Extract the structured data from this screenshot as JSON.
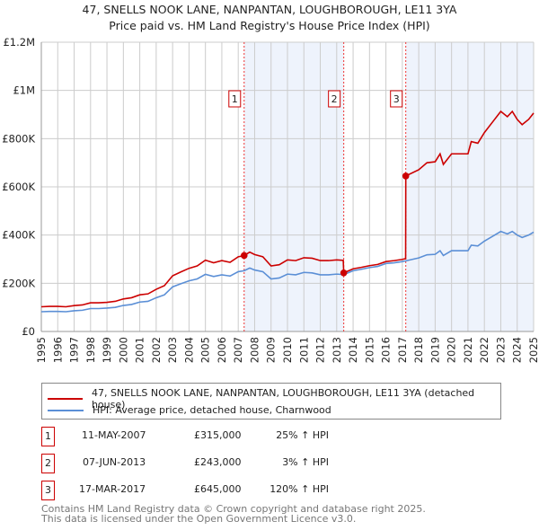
{
  "title": "47, SNELLS NOOK LANE, NANPANTAN, LOUGHBOROUGH, LE11 3YA",
  "subtitle": "Price paid vs. HM Land Registry's House Price Index (HPI)",
  "colors": {
    "property": "#cc0000",
    "hpi": "#5b8fd6",
    "shade": "#eef3fc",
    "grid": "#cccccc"
  },
  "chart_data": {
    "type": "line",
    "title": "47, SNELLS NOOK LANE, NANPANTAN, LOUGHBOROUGH, LE11 3YA",
    "subtitle": "Price paid vs. HM Land Registry's House Price Index (HPI)",
    "xlim": [
      1995,
      2025
    ],
    "ylim": [
      0,
      1200000
    ],
    "grid": true,
    "x_ticks": [
      "1995",
      "1996",
      "1997",
      "1998",
      "1999",
      "2000",
      "2001",
      "2002",
      "2003",
      "2004",
      "2005",
      "2006",
      "2007",
      "2008",
      "2009",
      "2010",
      "2011",
      "2012",
      "2013",
      "2014",
      "2015",
      "2016",
      "2017",
      "2018",
      "2019",
      "2020",
      "2021",
      "2022",
      "2023",
      "2024",
      "2025"
    ],
    "y_ticks": [
      {
        "v": 0,
        "label": "£0"
      },
      {
        "v": 200000,
        "label": "£200K"
      },
      {
        "v": 400000,
        "label": "£400K"
      },
      {
        "v": 600000,
        "label": "£600K"
      },
      {
        "v": 800000,
        "label": "£800K"
      },
      {
        "v": 1000000,
        "label": "£1M"
      },
      {
        "v": 1200000,
        "label": "£1.2M"
      }
    ],
    "legend_placement": "bottom",
    "series": [
      {
        "name": "47, SNELLS NOOK LANE, NANPANTAN, LOUGHBOROUGH, LE11 3YA (detached house)",
        "color": "#cc0000",
        "x": [
          1995,
          1995.5,
          1996,
          1996.5,
          1997,
          1997.5,
          1998,
          1998.5,
          1999,
          1999.5,
          2000,
          2000.5,
          2001,
          2001.5,
          2002,
          2002.5,
          2003,
          2003.5,
          2004,
          2004.5,
          2005,
          2005.5,
          2006,
          2006.5,
          2007,
          2007.36,
          2007.7,
          2008,
          2008.5,
          2009,
          2009.5,
          2010,
          2010.5,
          2011,
          2011.5,
          2012,
          2012.5,
          2013,
          2013.4,
          2013.43,
          2014,
          2014.5,
          2015,
          2015.5,
          2016,
          2016.5,
          2017,
          2017.2,
          2017.21,
          2018,
          2018.5,
          2019,
          2019.3,
          2019.5,
          2020,
          2020.5,
          2021,
          2021.2,
          2021.6,
          2022,
          2022.5,
          2023,
          2023.4,
          2023.7,
          2024,
          2024.3,
          2024.7,
          2025
        ],
        "y": [
          102500,
          104000,
          104000,
          102500,
          107500,
          110000,
          119000,
          119000,
          121000,
          125000,
          135000,
          140000,
          152000,
          156000,
          175000,
          190000,
          231000,
          247000,
          262000,
          272000,
          296000,
          285000,
          294000,
          287000,
          310000,
          315000,
          329000,
          319000,
          310000,
          272000,
          277000,
          297000,
          294000,
          306000,
          304000,
          294000,
          294000,
          297000,
          295000,
          243000,
          260000,
          266000,
          273000,
          278000,
          290000,
          294000,
          299000,
          302000,
          645000,
          671000,
          700000,
          704000,
          737000,
          693000,
          737000,
          737000,
          737000,
          788000,
          781000,
          825000,
          869000,
          913000,
          891000,
          913000,
          880000,
          858000,
          880000,
          906000
        ]
      },
      {
        "name": "HPI: Average price, detached house, Charnwood",
        "color": "#5b8fd6",
        "x": [
          1995,
          1995.5,
          1996,
          1996.5,
          1997,
          1997.5,
          1998,
          1998.5,
          1999,
          1999.5,
          2000,
          2000.5,
          2001,
          2001.5,
          2002,
          2002.5,
          2003,
          2003.5,
          2004,
          2004.5,
          2005,
          2005.5,
          2006,
          2006.5,
          2007,
          2007.36,
          2007.7,
          2008,
          2008.5,
          2009,
          2009.5,
          2010,
          2010.5,
          2011,
          2011.5,
          2012,
          2012.5,
          2013,
          2013.43,
          2014,
          2014.5,
          2015,
          2015.5,
          2016,
          2016.5,
          2017,
          2017.21,
          2018,
          2018.5,
          2019,
          2019.3,
          2019.5,
          2020,
          2020.5,
          2021,
          2021.2,
          2021.6,
          2022,
          2022.5,
          2023,
          2023.4,
          2023.7,
          2024,
          2024.3,
          2024.7,
          2025
        ],
        "y": [
          82000,
          83000,
          83000,
          82000,
          86000,
          88000,
          95000,
          95000,
          97000,
          100000,
          108000,
          112000,
          122000,
          125000,
          140000,
          152000,
          185000,
          198000,
          210000,
          218000,
          237000,
          228000,
          235000,
          230000,
          248000,
          252000,
          263000,
          255000,
          248000,
          218000,
          222000,
          238000,
          235000,
          245000,
          243000,
          235000,
          235000,
          238000,
          236000,
          252000,
          258000,
          265000,
          270000,
          282000,
          285000,
          290000,
          293000,
          305000,
          318000,
          320000,
          335000,
          315000,
          335000,
          335000,
          335000,
          358000,
          355000,
          375000,
          395000,
          415000,
          405000,
          415000,
          400000,
          390000,
          400000,
          412000
        ]
      }
    ],
    "sales": [
      {
        "id": "1",
        "x": 2007.36,
        "price": 315000,
        "date": "11-MAY-2007",
        "price_label": "£315,000",
        "hpi_label": "25% ↑ HPI"
      },
      {
        "id": "2",
        "x": 2013.43,
        "price": 243000,
        "date": "07-JUN-2013",
        "price_label": "£243,000",
        "hpi_label": "3% ↑ HPI"
      },
      {
        "id": "3",
        "x": 2017.21,
        "price": 645000,
        "date": "17-MAR-2017",
        "price_label": "£645,000",
        "hpi_label": "120% ↑ HPI"
      }
    ]
  },
  "legend": {
    "property": "47, SNELLS NOOK LANE, NANPANTAN, LOUGHBOROUGH, LE11 3YA (detached house)",
    "hpi": "HPI: Average price, detached house, Charnwood"
  },
  "footer": {
    "line1": "Contains HM Land Registry data © Crown copyright and database right 2025.",
    "line2": "This data is licensed under the Open Government Licence v3.0."
  }
}
